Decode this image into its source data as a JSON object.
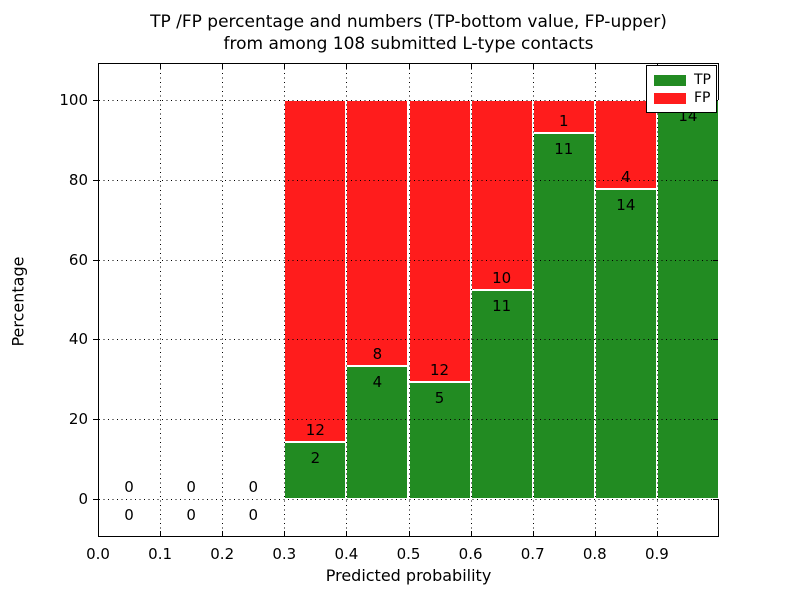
{
  "chart_data": {
    "type": "bar",
    "stacked": true,
    "values_shown_as": "percent of bin total",
    "title_lines": [
      "TP /FP percentage and numbers (TP-bottom value, FP-upper)",
      "from among 108 submitted L-type contacts"
    ],
    "total_contacts": 108,
    "xlabel": "Predicted probability",
    "ylabel": "Percentage",
    "x_tick_labels": [
      "0.0",
      "0.1",
      "0.2",
      "0.3",
      "0.4",
      "0.5",
      "0.6",
      "0.7",
      "0.8",
      "0.9"
    ],
    "x_tick_values": [
      0.0,
      0.1,
      0.2,
      0.3,
      0.4,
      0.5,
      0.6,
      0.7,
      0.8,
      0.9
    ],
    "y_tick_labels": [
      "0",
      "20",
      "40",
      "60",
      "80",
      "100"
    ],
    "y_tick_values": [
      0,
      20,
      40,
      60,
      80,
      100
    ],
    "xlim": [
      0.0,
      1.0
    ],
    "ylim_percent": [
      0,
      100
    ],
    "grid": true,
    "grid_style": "dotted",
    "colors": {
      "tp": "#228B22",
      "fp": "#FF1C1C",
      "bar_edge": "#FFFFFF"
    },
    "legend": {
      "position": "upper right",
      "entries": [
        {
          "label": "TP",
          "color": "#228B22"
        },
        {
          "label": "FP",
          "color": "#FF1C1C"
        }
      ]
    },
    "bins": [
      {
        "range": [
          0.0,
          0.1
        ],
        "tp": 0,
        "fp": 0,
        "tp_percent": 0.0
      },
      {
        "range": [
          0.1,
          0.2
        ],
        "tp": 0,
        "fp": 0,
        "tp_percent": 0.0
      },
      {
        "range": [
          0.2,
          0.3
        ],
        "tp": 0,
        "fp": 0,
        "tp_percent": 0.0
      },
      {
        "range": [
          0.3,
          0.4
        ],
        "tp": 2,
        "fp": 12,
        "tp_percent": 14.3
      },
      {
        "range": [
          0.4,
          0.5
        ],
        "tp": 4,
        "fp": 8,
        "tp_percent": 33.3
      },
      {
        "range": [
          0.5,
          0.6
        ],
        "tp": 5,
        "fp": 12,
        "tp_percent": 29.4
      },
      {
        "range": [
          0.6,
          0.7
        ],
        "tp": 11,
        "fp": 10,
        "tp_percent": 52.4
      },
      {
        "range": [
          0.7,
          0.8
        ],
        "tp": 11,
        "fp": 1,
        "tp_percent": 91.7
      },
      {
        "range": [
          0.8,
          0.9
        ],
        "tp": 14,
        "fp": 4,
        "tp_percent": 77.8
      },
      {
        "range": [
          0.9,
          1.0
        ],
        "tp": 14,
        "fp": 0,
        "tp_percent": 100.0
      }
    ]
  }
}
